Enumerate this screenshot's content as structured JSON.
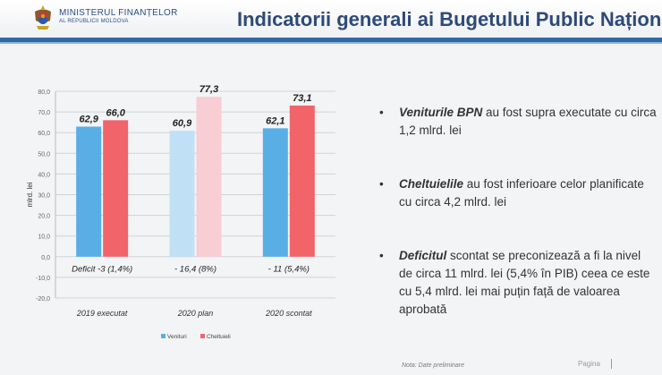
{
  "header": {
    "ministry_line1": "MINISTERUL FINANȚELOR",
    "ministry_line2": "AL REPUBLICII MOLDOVA",
    "title": "Indicatorii generali ai Bugetului Public Național"
  },
  "chart_data": {
    "type": "bar",
    "categories": [
      "2019 executat",
      "2020 plan",
      "2020  scontat"
    ],
    "series": [
      {
        "name": "Venituri",
        "values": [
          62.9,
          60.9,
          62.1
        ],
        "labels": [
          "62,9",
          "60,9",
          "62,1"
        ],
        "color": "#5aaee6"
      },
      {
        "name": "Cheltuieli",
        "values": [
          66.0,
          77.3,
          73.1
        ],
        "labels": [
          "66,0",
          "77,3",
          "73,1"
        ],
        "color": "#f1646a"
      }
    ],
    "ylabel": "mlrd. lei",
    "ylim": [
      -20,
      80
    ],
    "yticks": [
      "-20,0",
      "-10,0",
      "0,0",
      "10,0",
      "20,0",
      "30,0",
      "40,0",
      "50,0",
      "60,0",
      "70,0",
      "80,0"
    ],
    "ytick_values": [
      -20,
      -10,
      0,
      10,
      20,
      30,
      40,
      50,
      60,
      70,
      80
    ],
    "annotations": [
      "Deficit -3 (1,4%)",
      "- 16,4 (8%)",
      "- 11 (5,4%)"
    ],
    "grid": true,
    "legend": "bottom"
  },
  "bullets": [
    {
      "bold": "Veniturile BPN",
      "text": " au fost supra executate cu circa 1,2 mlrd. lei"
    },
    {
      "bold": "Cheltuielile",
      "text": " au fost inferioare celor planificate cu circa 4,2 mlrd. lei"
    },
    {
      "bold": "Deficitul",
      "text": " scontat se preconizează a fi la nivel de circa 11 mlrd. lei (5,4% în PIB) ceea ce este cu 5,4 mlrd. lei mai puțin față de valoarea aprobată"
    }
  ],
  "bullet_symbol": "•",
  "footer": {
    "note": "Nota: Date preliminare",
    "page_label": "Pagina"
  },
  "colors": {
    "header_blue": "#2e6aa6",
    "title": "#2e4a78",
    "venituri": "#5aaee6",
    "cheltuieli": "#f1646a"
  }
}
